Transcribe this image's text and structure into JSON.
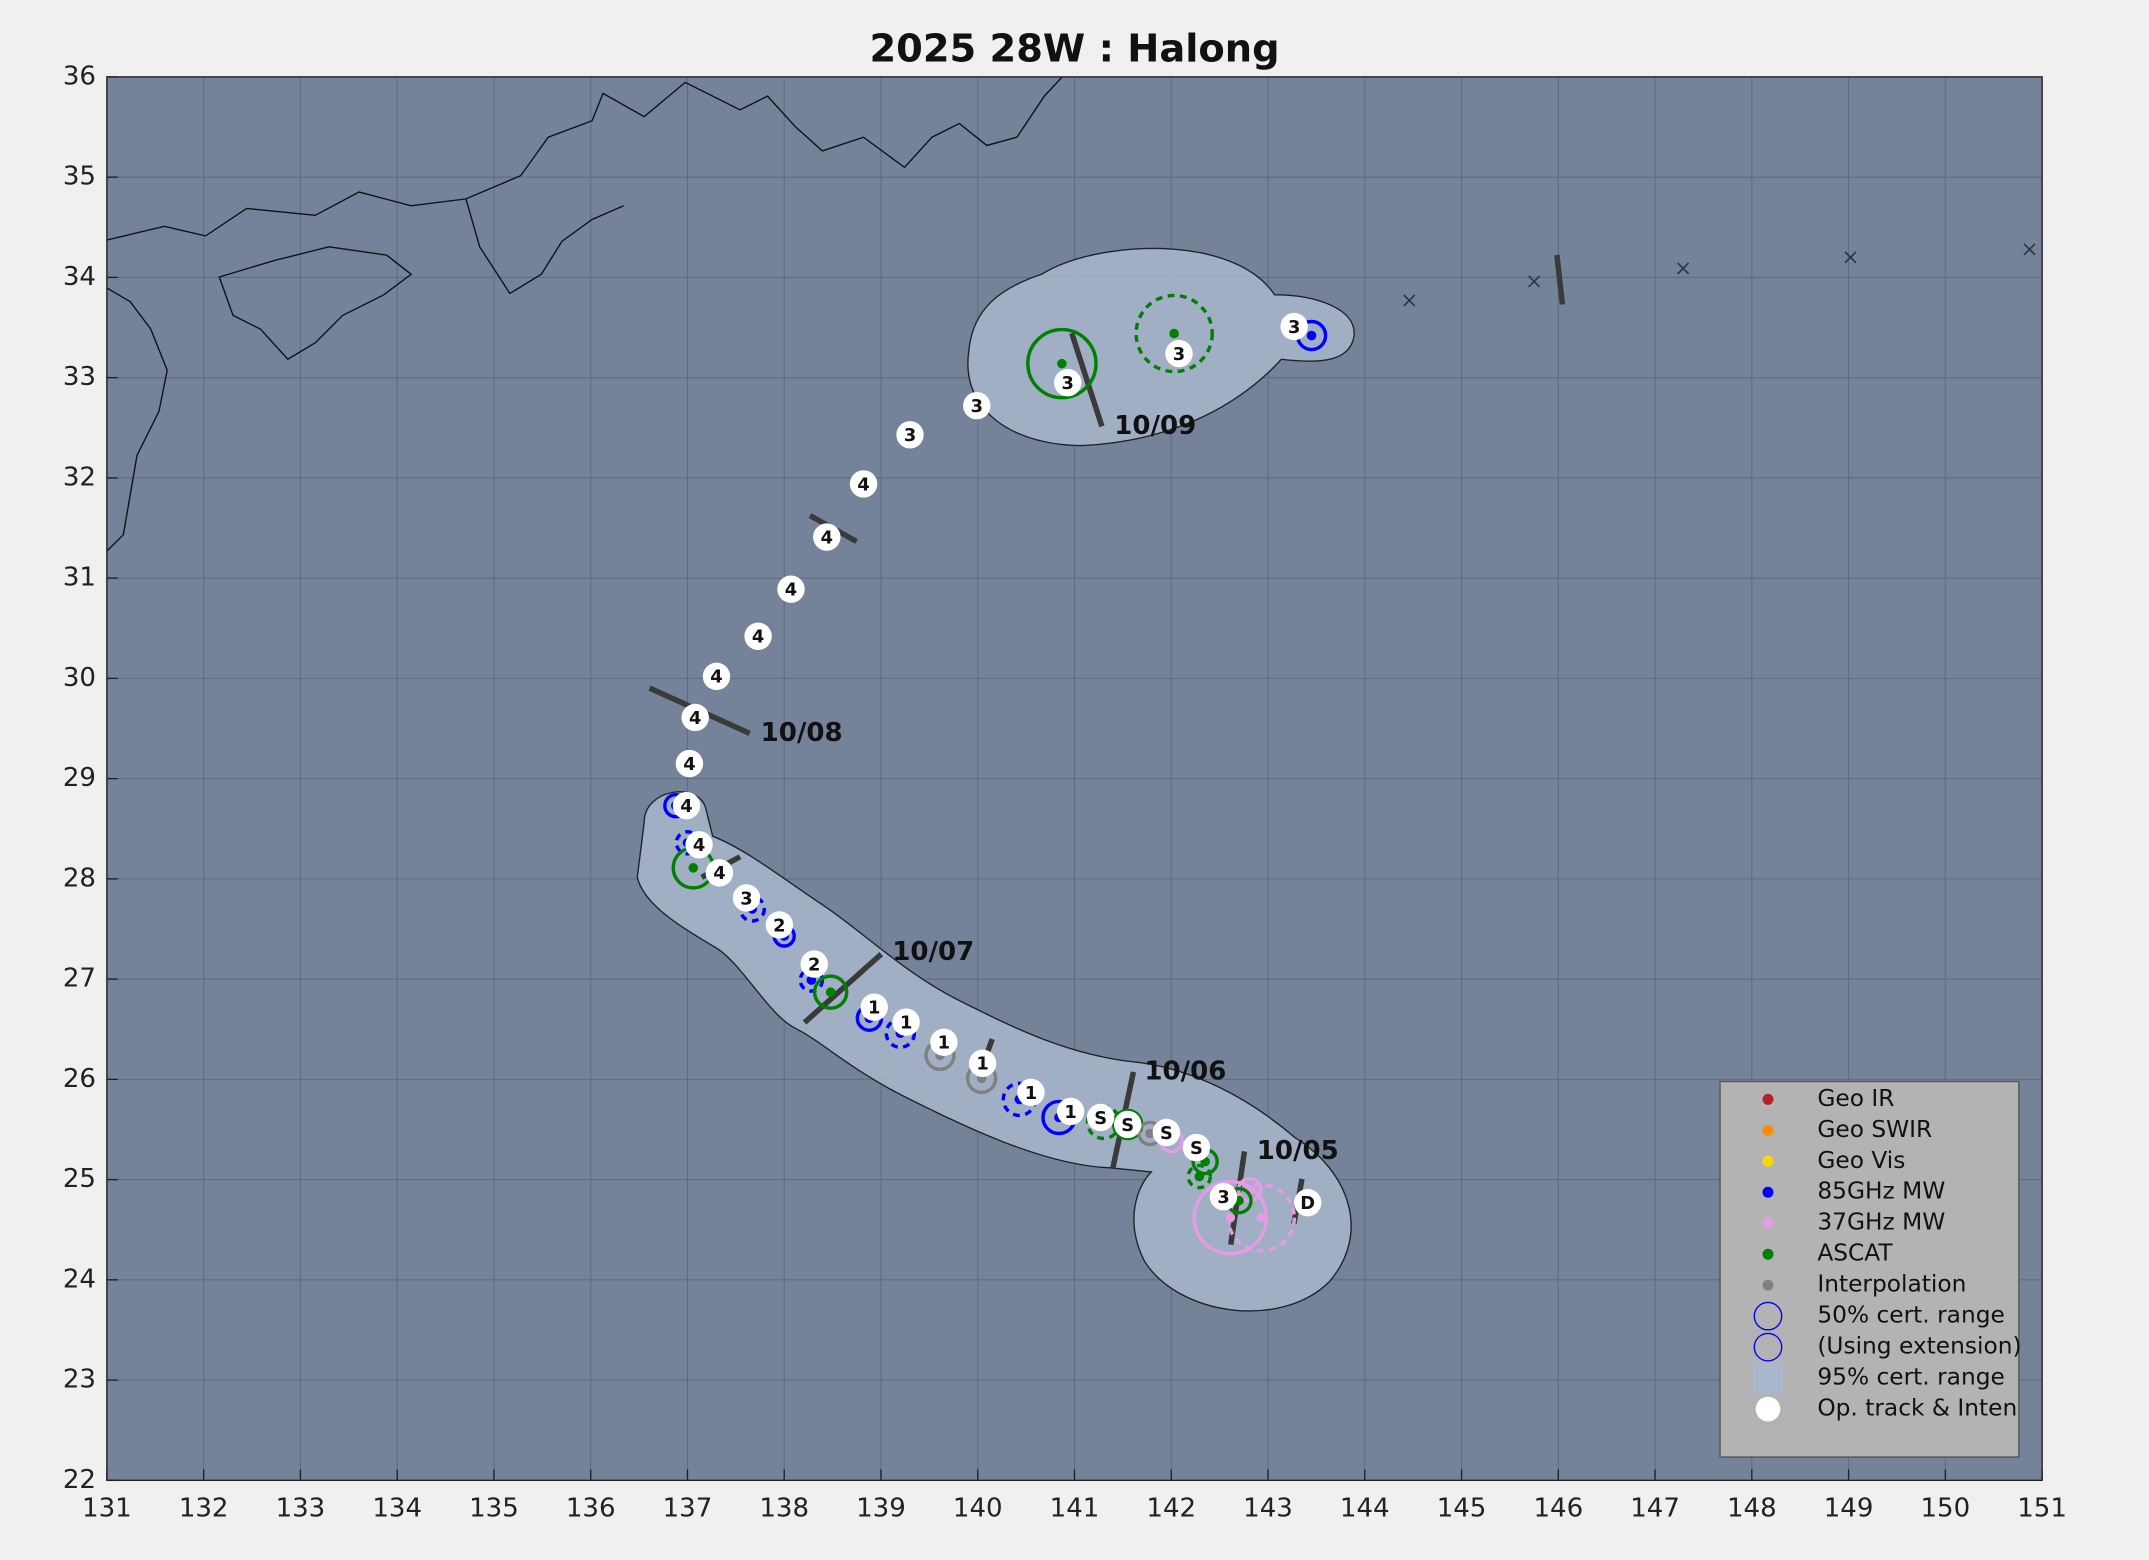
{
  "chart_data": {
    "type": "track-map",
    "title": "2025  28W :  Halong",
    "xlim": [
      131,
      151
    ],
    "xticks": [
      131,
      132,
      133,
      134,
      135,
      136,
      137,
      138,
      139,
      140,
      141,
      142,
      143,
      144,
      145,
      146,
      147,
      148,
      149,
      150,
      151
    ],
    "ylim": [
      22,
      36
    ],
    "yticks": [
      22,
      23,
      24,
      25,
      26,
      27,
      28,
      29,
      30,
      31,
      32,
      33,
      34,
      35,
      36
    ],
    "grid": true,
    "legend_position": "lower right",
    "date_labels": [
      "10/05",
      "10/06",
      "10/07",
      "10/08",
      "10/09"
    ],
    "series": [
      {
        "name": "Geo IR",
        "color": "#b22222",
        "x": [],
        "y": [],
        "r": [],
        "dashed": []
      },
      {
        "name": "Geo SWIR",
        "color": "#ff8c00",
        "x": [],
        "y": [],
        "r": [],
        "dashed": []
      },
      {
        "name": "Geo Vis",
        "color": "#ffd700",
        "x": [],
        "y": [],
        "r": [],
        "dashed": []
      },
      {
        "name": "85GHz MW",
        "color": "#0000ff",
        "x": [
          143.45,
          140.84,
          140.43,
          139.2,
          138.88,
          138.28,
          138.0,
          137.67,
          137.0,
          136.88
        ],
        "y": [
          33.42,
          25.62,
          25.8,
          26.46,
          26.61,
          26.99,
          27.43,
          27.7,
          28.36,
          28.73
        ],
        "r": [
          0.14,
          0.16,
          0.16,
          0.14,
          0.12,
          0.11,
          0.1,
          0.12,
          0.11,
          0.11
        ],
        "dashed": [
          false,
          false,
          true,
          true,
          false,
          true,
          false,
          true,
          true,
          false
        ]
      },
      {
        "name": "37GHz MW",
        "color": "#e59be5",
        "x": [
          142.61,
          142.93,
          142.0,
          142.81
        ],
        "y": [
          24.62,
          24.62,
          25.39,
          24.9
        ],
        "r": [
          0.36,
          0.33,
          0.11,
          0.11
        ],
        "dashed": [
          false,
          true,
          false,
          false
        ]
      },
      {
        "name": "ASCAT",
        "color": "#008000",
        "x": [
          140.87,
          142.03,
          137.06,
          138.48,
          141.55,
          141.3,
          142.35,
          142.29,
          142.7
        ],
        "y": [
          33.14,
          33.44,
          28.11,
          26.87,
          25.55,
          25.57,
          25.18,
          25.03,
          24.79
        ],
        "r": [
          0.34,
          0.38,
          0.2,
          0.16,
          0.14,
          0.16,
          0.12,
          0.11,
          0.12
        ],
        "dashed": [
          false,
          true,
          false,
          false,
          false,
          true,
          false,
          true,
          false
        ]
      },
      {
        "name": "Interpolation",
        "color": "#808080",
        "x": [
          139.61,
          140.04,
          141.78,
          142.54
        ],
        "y": [
          26.24,
          26.01,
          25.46,
          24.83
        ],
        "r": [
          0.14,
          0.14,
          0.11,
          0.11
        ],
        "dashed": [
          false,
          false,
          false,
          false
        ]
      }
    ],
    "legend_extra": [
      {
        "name": "50% cert. range",
        "marker": "ring",
        "color": "#0000ff"
      },
      {
        "name": "(Using extension)",
        "marker": "ring",
        "color": "#0000ff"
      },
      {
        "name": "95% cert. range",
        "marker": "square",
        "color": "#a9b7cc"
      },
      {
        "name": "Op. track & Inten",
        "marker": "dot",
        "color": "#ffffff"
      }
    ],
    "track": {
      "x": [
        143.41,
        142.54,
        142.26,
        141.95,
        141.55,
        141.27,
        140.96,
        140.55,
        140.05,
        139.65,
        139.26,
        138.93,
        138.31,
        137.95,
        137.61,
        137.33,
        137.12,
        136.99,
        137.02,
        137.08,
        137.3,
        137.73,
        138.07,
        138.44,
        138.82,
        139.3,
        139.99,
        140.93,
        142.08,
        143.27
      ],
      "y": [
        24.77,
        24.83,
        25.32,
        25.47,
        25.55,
        25.62,
        25.68,
        25.87,
        26.16,
        26.37,
        26.57,
        26.72,
        27.15,
        27.54,
        27.81,
        28.06,
        28.34,
        28.73,
        29.15,
        29.61,
        30.02,
        30.42,
        30.89,
        31.41,
        31.94,
        32.43,
        32.72,
        32.95,
        33.24,
        33.51
      ],
      "labels": [
        "D",
        "3",
        "S",
        "S",
        "S",
        "S",
        "1",
        "1",
        "1",
        "1",
        "1",
        "1",
        "2",
        "2",
        "3",
        "4",
        "4",
        "4",
        "4",
        "4",
        "4",
        "4",
        "4",
        "4",
        "4",
        "3",
        "3",
        "3",
        "3",
        "3"
      ]
    },
    "forecast": {
      "marker": "x",
      "color": "#333333",
      "x": [
        144.46,
        145.75,
        147.29,
        149.02,
        150.87
      ],
      "y": [
        33.77,
        33.96,
        34.09,
        34.2,
        34.28
      ]
    }
  }
}
